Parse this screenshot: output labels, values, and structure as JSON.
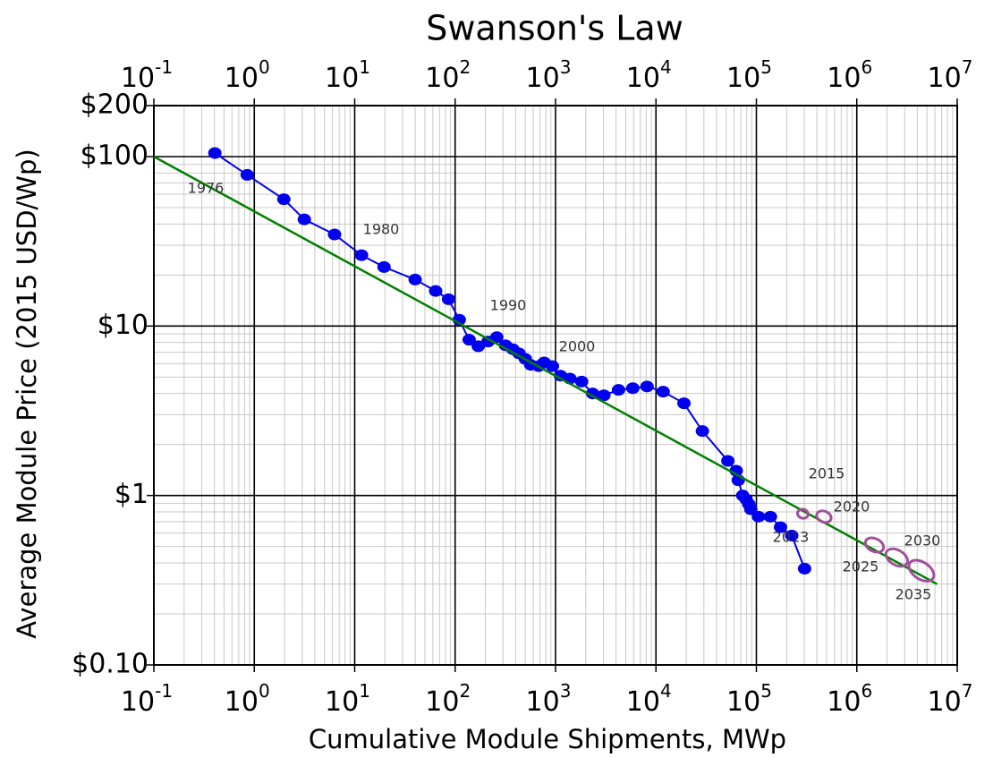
{
  "chart_data": {
    "type": "line",
    "title": "Swanson's Law",
    "x_label": "Cumulative Module Shipments, MWp",
    "y_label": "Average Module Price (2015 USD/Wp)",
    "xscale": "log",
    "yscale": "log",
    "grid": true,
    "xlim": [
      0.1,
      10000000
    ],
    "ylim": [
      0.1,
      200
    ],
    "xticks": [
      {
        "value": 0.1,
        "label": "10",
        "exponent": "-1"
      },
      {
        "value": 1,
        "label": "10",
        "exponent": "0"
      },
      {
        "value": 10,
        "label": "10",
        "exponent": "1"
      },
      {
        "value": 100,
        "label": "10",
        "exponent": "2"
      },
      {
        "value": 1000,
        "label": "10",
        "exponent": "3"
      },
      {
        "value": 10000,
        "label": "10",
        "exponent": "4"
      },
      {
        "value": 100000,
        "label": "10",
        "exponent": "5"
      },
      {
        "value": 1000000,
        "label": "10",
        "exponent": "6"
      },
      {
        "value": 10000000,
        "label": "10",
        "exponent": "7"
      }
    ],
    "yticks": [
      {
        "value": 0.1,
        "label": "$0.10"
      },
      {
        "value": 1,
        "label": "$1"
      },
      {
        "value": 10,
        "label": "$10"
      },
      {
        "value": 100,
        "label": "$100"
      },
      {
        "value": 200,
        "label": "$200"
      }
    ],
    "series": [
      {
        "color": "#0000ee",
        "marker": "dot",
        "x": [
          0.405,
          0.85,
          1.97,
          3.15,
          6.3,
          11.7,
          19.6,
          40,
          64,
          86,
          110,
          138,
          170,
          213,
          260,
          318,
          376,
          433,
          500,
          566,
          680,
          770,
          930,
          1120,
          1390,
          1820,
          2340,
          3030,
          4240,
          5880,
          8150,
          11800,
          19000,
          29000,
          52000,
          63000,
          66000,
          73000,
          79000,
          84000,
          88000,
          105000,
          138000,
          174000,
          225000,
          302000
        ],
        "values": [
          105,
          78,
          56,
          42.6,
          34.7,
          26.2,
          22.3,
          18.8,
          16.1,
          14.4,
          10.9,
          8.3,
          7.6,
          8.1,
          8.6,
          7.7,
          7.3,
          6.9,
          6.4,
          5.9,
          5.8,
          6.1,
          5.8,
          5.1,
          4.9,
          4.7,
          4.0,
          3.9,
          4.2,
          4.3,
          4.4,
          4.1,
          3.5,
          2.4,
          1.6,
          1.4,
          1.23,
          1.0,
          0.95,
          0.89,
          0.83,
          0.75,
          0.75,
          0.65,
          0.58,
          0.37
        ]
      },
      {
        "color": "#008000",
        "marker": "none",
        "x": [
          0.1,
          6300000
        ],
        "values": [
          100,
          0.3
        ]
      },
      {
        "color": "#a0509a",
        "marker": "ring",
        "x": [
          290000,
          470000,
          1500000,
          2500000,
          4400000
        ],
        "values": [
          0.78,
          0.75,
          0.51,
          0.43,
          0.36
        ]
      }
    ],
    "annotations": [
      "1976",
      "1980",
      "1990",
      "2000",
      "2013",
      "2015",
      "2020",
      "2025",
      "2030",
      "2035"
    ]
  }
}
